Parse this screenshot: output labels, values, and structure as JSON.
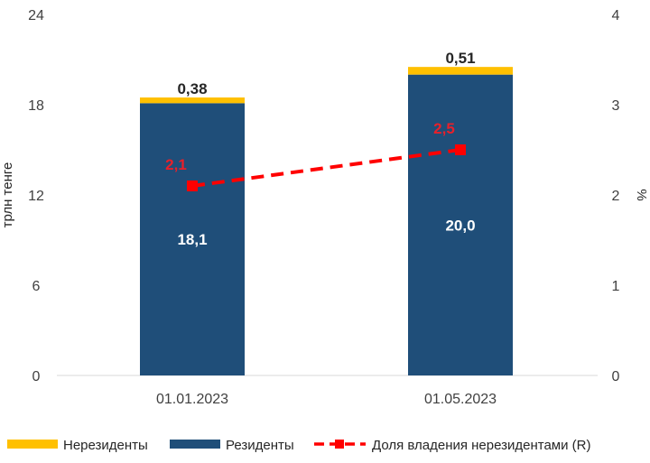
{
  "chart_data": {
    "type": "bar",
    "stacked": true,
    "categories": [
      "01.01.2023",
      "01.05.2023"
    ],
    "series": [
      {
        "name": "Резиденты",
        "values": [
          18.1,
          20.0
        ],
        "color": "#1f4e79",
        "labels": [
          "18,1",
          "20,0"
        ]
      },
      {
        "name": "Нерезиденты",
        "values": [
          0.38,
          0.51
        ],
        "color": "#ffc000",
        "labels": [
          "0,38",
          "0,51"
        ]
      },
      {
        "name": "Доля владения нерезидентами (R)",
        "type": "line",
        "axis": "right",
        "values": [
          2.1,
          2.5
        ],
        "color": "#ff0000",
        "labels": [
          "2,1",
          "2,5"
        ]
      }
    ],
    "ylabel": "трлн тенге",
    "ylim": [
      0,
      24
    ],
    "yticks": [
      "0",
      "6",
      "12",
      "18",
      "24"
    ],
    "y2label": "%",
    "y2lim": [
      0,
      4
    ],
    "y2ticks": [
      "0",
      "1",
      "2",
      "3",
      "4"
    ],
    "legend": {
      "position": "bottom",
      "items": [
        "Нерезиденты",
        "Резиденты",
        "Доля владения нерезидентами (R)"
      ]
    }
  }
}
